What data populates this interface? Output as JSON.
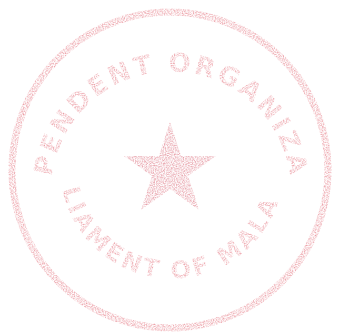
{
  "seal": {
    "ink_color": "#d83a4a",
    "star_color": "#cc3044",
    "top_text": "INDEPENDENT ORGANIZATION",
    "bottom_text": "PARLIAMENT OF MALAYSIA",
    "icons": [
      "star-icon"
    ]
  }
}
